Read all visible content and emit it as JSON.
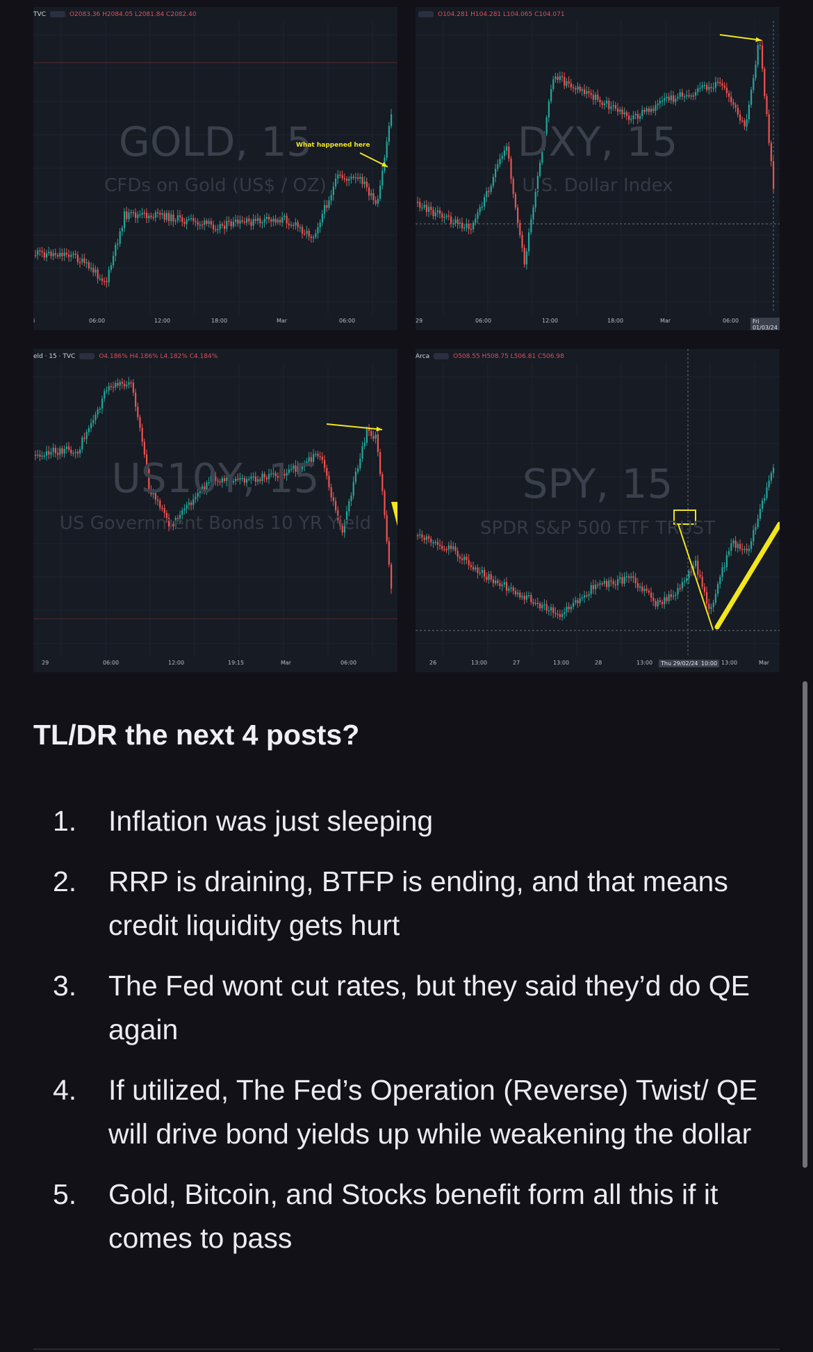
{
  "charts": [
    {
      "header": {
        "symbol": "TVC",
        "ohlc": "O2083.36 H2084.05 L2081.84 C2082.40"
      },
      "title": "GOLD, 15",
      "subtitle": "CFDs on Gold (US$ / OZ)",
      "annotation": "What happened here",
      "xticks": [
        "i",
        "06:00",
        "12:00",
        "18:00",
        "Mar",
        "06:00"
      ]
    },
    {
      "header": {
        "symbol": "",
        "ohlc": "O104.281 H104.281 L104.065 C104.071"
      },
      "title": "DXY, 15",
      "subtitle": "U.S. Dollar Index",
      "xticks": [
        "29",
        "06:00",
        "12:00",
        "18:00",
        "Mar",
        "06:00",
        "Fri 01/03/24"
      ]
    },
    {
      "header": {
        "symbol": "eld · 15 · TVC",
        "ohlc": "O4.186% H4.186% L4.182% C4.184%"
      },
      "title": "US10Y, 15",
      "subtitle": "US Government Bonds 10 YR Yield",
      "xticks": [
        "29",
        "06:00",
        "12:00",
        "19:15",
        "Mar",
        "06:00"
      ]
    },
    {
      "header": {
        "symbol": "Arca",
        "ohlc": "O508.55 H508.75 L506.81 C506.98"
      },
      "title": "SPY, 15",
      "subtitle": "SPDR S&P 500 ETF TRUST",
      "xticks": [
        "26",
        "13:00",
        "27",
        "13:00",
        "28",
        "13:00",
        "Thu 29/02/24",
        "10:00",
        "13:00",
        "Mar"
      ]
    }
  ],
  "post": {
    "heading": "TL/DR the next 4 posts?",
    "items": [
      {
        "num": "1.",
        "text": "Inflation was just sleeping"
      },
      {
        "num": "2.",
        "text": "RRP is draining, BTFP is ending, and that means credit liquidity gets hurt"
      },
      {
        "num": "3.",
        "text": "The Fed wont cut rates, but they said they’d do QE again"
      },
      {
        "num": "4.",
        "text": "If utilized, The Fed’s Operation (Reverse) Twist/ QE will drive bond yields up while weakening the dollar"
      },
      {
        "num": "5.",
        "text": "Gold, Bitcoin, and Stocks benefit form all this if it comes to pass"
      }
    ]
  },
  "colors": {
    "up": "#26a69a",
    "down": "#ef5350",
    "annotation": "#f3e61d",
    "background": "#121118"
  }
}
